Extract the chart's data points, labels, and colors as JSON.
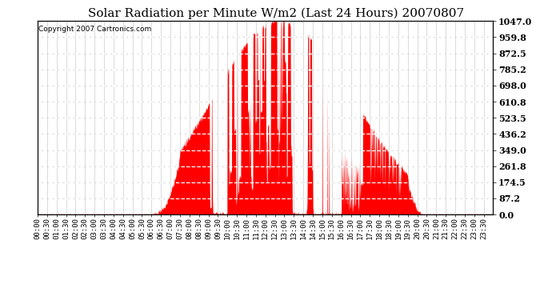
{
  "title": "Solar Radiation per Minute W/m2 (Last 24 Hours) 20070807",
  "copyright_text": "Copyright 2007 Cartronics.com",
  "background_color": "#ffffff",
  "plot_bg_color": "#ffffff",
  "bar_color": "#ff0000",
  "dashed_line_color": "#ffffff",
  "bottom_line_color": "#ff0000",
  "grid_color": "#c0c0c0",
  "yticks": [
    0.0,
    87.2,
    174.5,
    261.8,
    349.0,
    436.2,
    523.5,
    610.8,
    698.0,
    785.2,
    872.5,
    959.8,
    1047.0
  ],
  "ymax": 1047.0,
  "ymin": 0.0,
  "title_fontsize": 11,
  "tick_fontsize": 6.5,
  "copyright_fontsize": 6.5,
  "num_minutes": 1440,
  "sunrise_minute": 360,
  "sunset_minute": 1215
}
